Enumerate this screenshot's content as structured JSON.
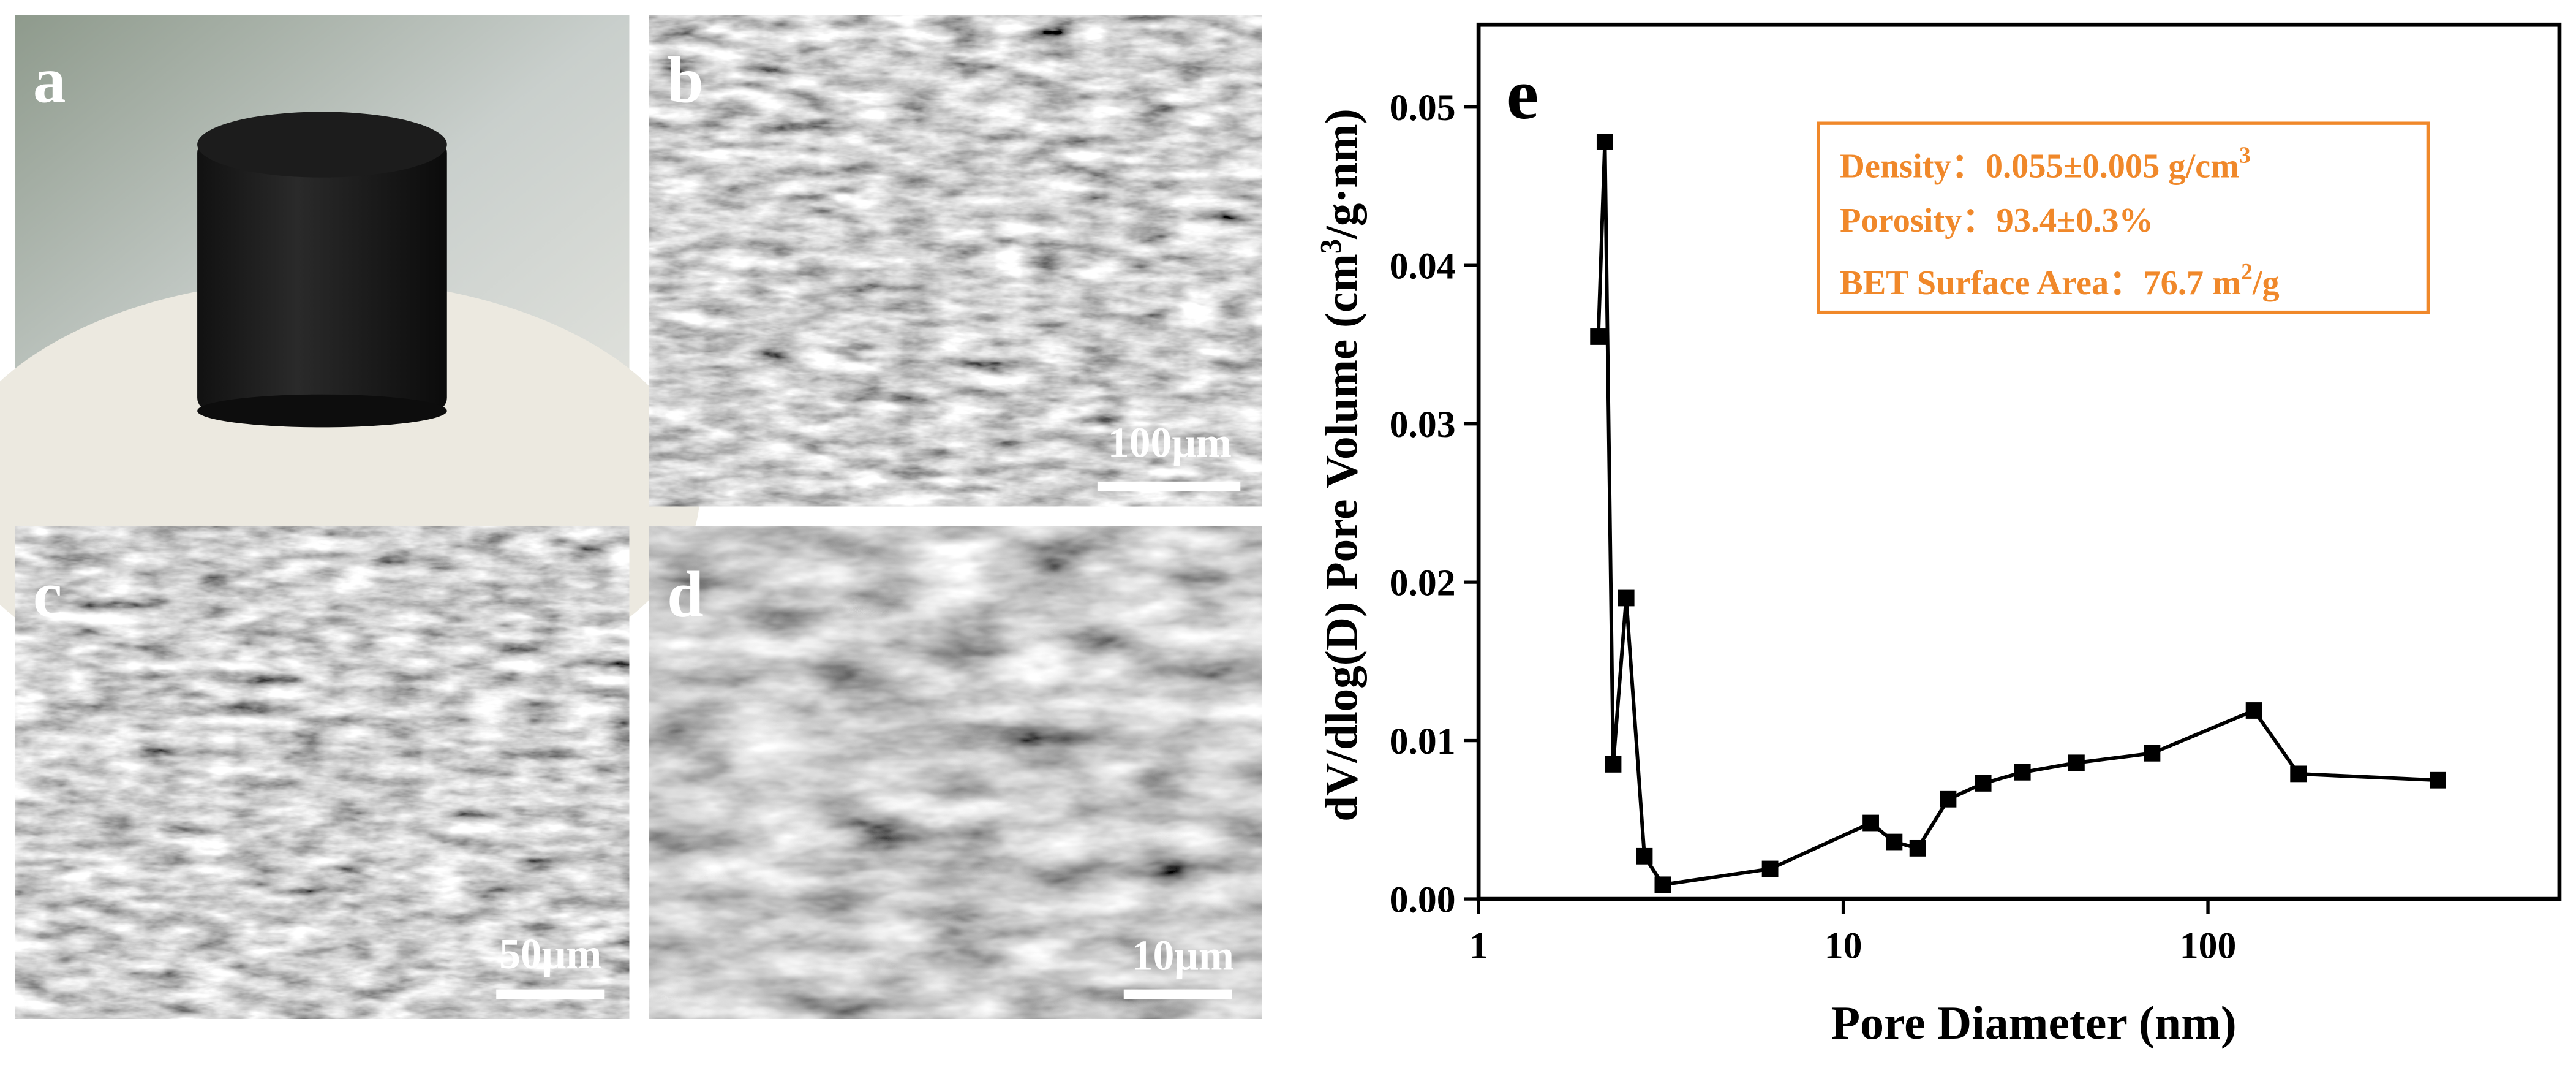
{
  "panels": [
    {
      "label": "a"
    },
    {
      "label": "b",
      "scale_bar": "100μm"
    },
    {
      "label": "c",
      "scale_bar": "50μm"
    },
    {
      "label": "d",
      "scale_bar": "10μm"
    }
  ],
  "chart_data": {
    "type": "line",
    "panel_label": "e",
    "x_label": "Pore Diameter (nm)",
    "y_label": {
      "text": "dV/dlog(D) Pore Volume (cm",
      "sup": "3",
      "tail": "/g·nm)"
    },
    "x": [
      2.13,
      2.22,
      2.34,
      2.54,
      2.85,
      3.2,
      6.3,
      11.9,
      13.8,
      16,
      19.4,
      24.2,
      31,
      43.6,
      70.3,
      133.7,
      177,
      427
    ],
    "values": [
      0.0355,
      0.0478,
      0.0085,
      0.019,
      0.0027,
      0.0009,
      0.0019,
      0.0048,
      0.0036,
      0.0032,
      0.0063,
      0.0073,
      0.008,
      0.0086,
      0.0092,
      0.0119,
      0.0079,
      0.0075
    ],
    "color": "#000000",
    "xscale": "log",
    "xlim": [
      1,
      920
    ],
    "xticks": [
      1,
      10,
      100
    ],
    "ylim": [
      0,
      0.0552
    ],
    "yticks": [
      {
        "value": 0,
        "label": "0.00"
      },
      {
        "value": 0.01,
        "label": "0.01"
      },
      {
        "value": 0.02,
        "label": "0.02"
      },
      {
        "value": 0.03,
        "label": "0.03"
      },
      {
        "value": 0.04,
        "label": "0.04"
      },
      {
        "value": 0.05,
        "label": "0.05"
      }
    ],
    "annotations": [
      {
        "text": "Density：0.055±0.005 g/cm",
        "sup": "3"
      },
      {
        "text": "Porosity：93.4±0.3%"
      },
      {
        "text": "BET Surface Area：76.7 m",
        "sup": "2",
        "tail": "/g"
      }
    ],
    "annotation_color": "#f0882a"
  }
}
